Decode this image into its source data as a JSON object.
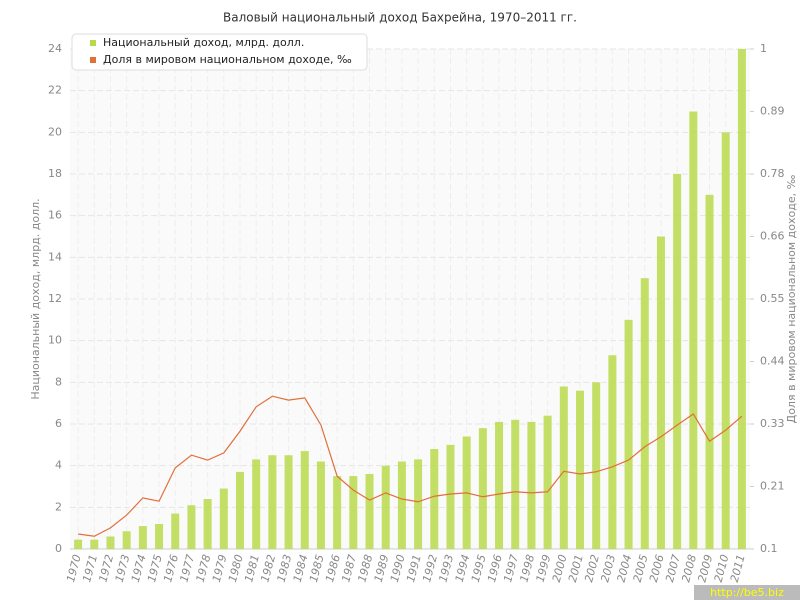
{
  "chart_data": {
    "type": "bar_line",
    "title": "Валовый национальный доход Бахрейна, 1970–2011 гг.",
    "y_label": "Национальный доход, млрд. долл.",
    "y2_label": "Доля в мировом национальном доходе, ‰",
    "watermark": "http://be5.biz",
    "legend": "top-left",
    "grid": true,
    "categories": [
      "1970",
      "1971",
      "1972",
      "1973",
      "1974",
      "1975",
      "1976",
      "1977",
      "1978",
      "1979",
      "1980",
      "1981",
      "1982",
      "1983",
      "1984",
      "1985",
      "1986",
      "1987",
      "1988",
      "1989",
      "1990",
      "1991",
      "1992",
      "1993",
      "1994",
      "1995",
      "1996",
      "1997",
      "1998",
      "1999",
      "2000",
      "2001",
      "2002",
      "2003",
      "2004",
      "2005",
      "2006",
      "2007",
      "2008",
      "2009",
      "2010",
      "2011"
    ],
    "series": [
      {
        "name": "Национальный доход, млрд. долл.",
        "type": "bar",
        "color": "#b8d94a",
        "values": [
          0.45,
          0.45,
          0.6,
          0.85,
          1.1,
          1.2,
          1.7,
          2.1,
          2.4,
          2.9,
          3.7,
          4.3,
          4.5,
          4.5,
          4.7,
          4.2,
          3.5,
          3.5,
          3.6,
          4.0,
          4.2,
          4.3,
          4.8,
          5.0,
          5.4,
          5.8,
          6.1,
          6.2,
          6.1,
          6.4,
          7.8,
          7.6,
          8.0,
          9.3,
          11.0,
          13.0,
          15.0,
          18.0,
          21.0,
          17.0,
          20.0,
          24.0
        ]
      },
      {
        "name": "Доля в мировом национальном доходе, ‰",
        "type": "line",
        "axis": "y2",
        "color": "#e0703a",
        "values": [
          0.127,
          0.123,
          0.138,
          0.161,
          0.192,
          0.186,
          0.246,
          0.269,
          0.26,
          0.273,
          0.312,
          0.356,
          0.375,
          0.368,
          0.372,
          0.323,
          0.231,
          0.206,
          0.188,
          0.201,
          0.19,
          0.185,
          0.195,
          0.199,
          0.201,
          0.194,
          0.199,
          0.203,
          0.201,
          0.203,
          0.24,
          0.235,
          0.239,
          0.248,
          0.26,
          0.284,
          0.302,
          0.323,
          0.343,
          0.294,
          0.314,
          0.339
        ]
      }
    ],
    "ylim": [
      0,
      24
    ],
    "yticks": [
      0,
      2,
      4,
      6,
      8,
      10,
      12,
      14,
      16,
      18,
      20,
      22,
      24
    ],
    "y2lim": [
      0.1,
      1
    ],
    "y2ticks": [
      0.1,
      {
        "value": 0.2125,
        "label": "0.21"
      },
      {
        "value": 0.325,
        "label": "0.33"
      },
      {
        "value": 0.4375,
        "label": "0.44"
      },
      0.55,
      {
        "value": 0.6625,
        "label": "0.66"
      },
      {
        "value": 0.775,
        "label": "0.78"
      },
      {
        "value": 0.8875,
        "label": "0.89"
      },
      1
    ]
  }
}
